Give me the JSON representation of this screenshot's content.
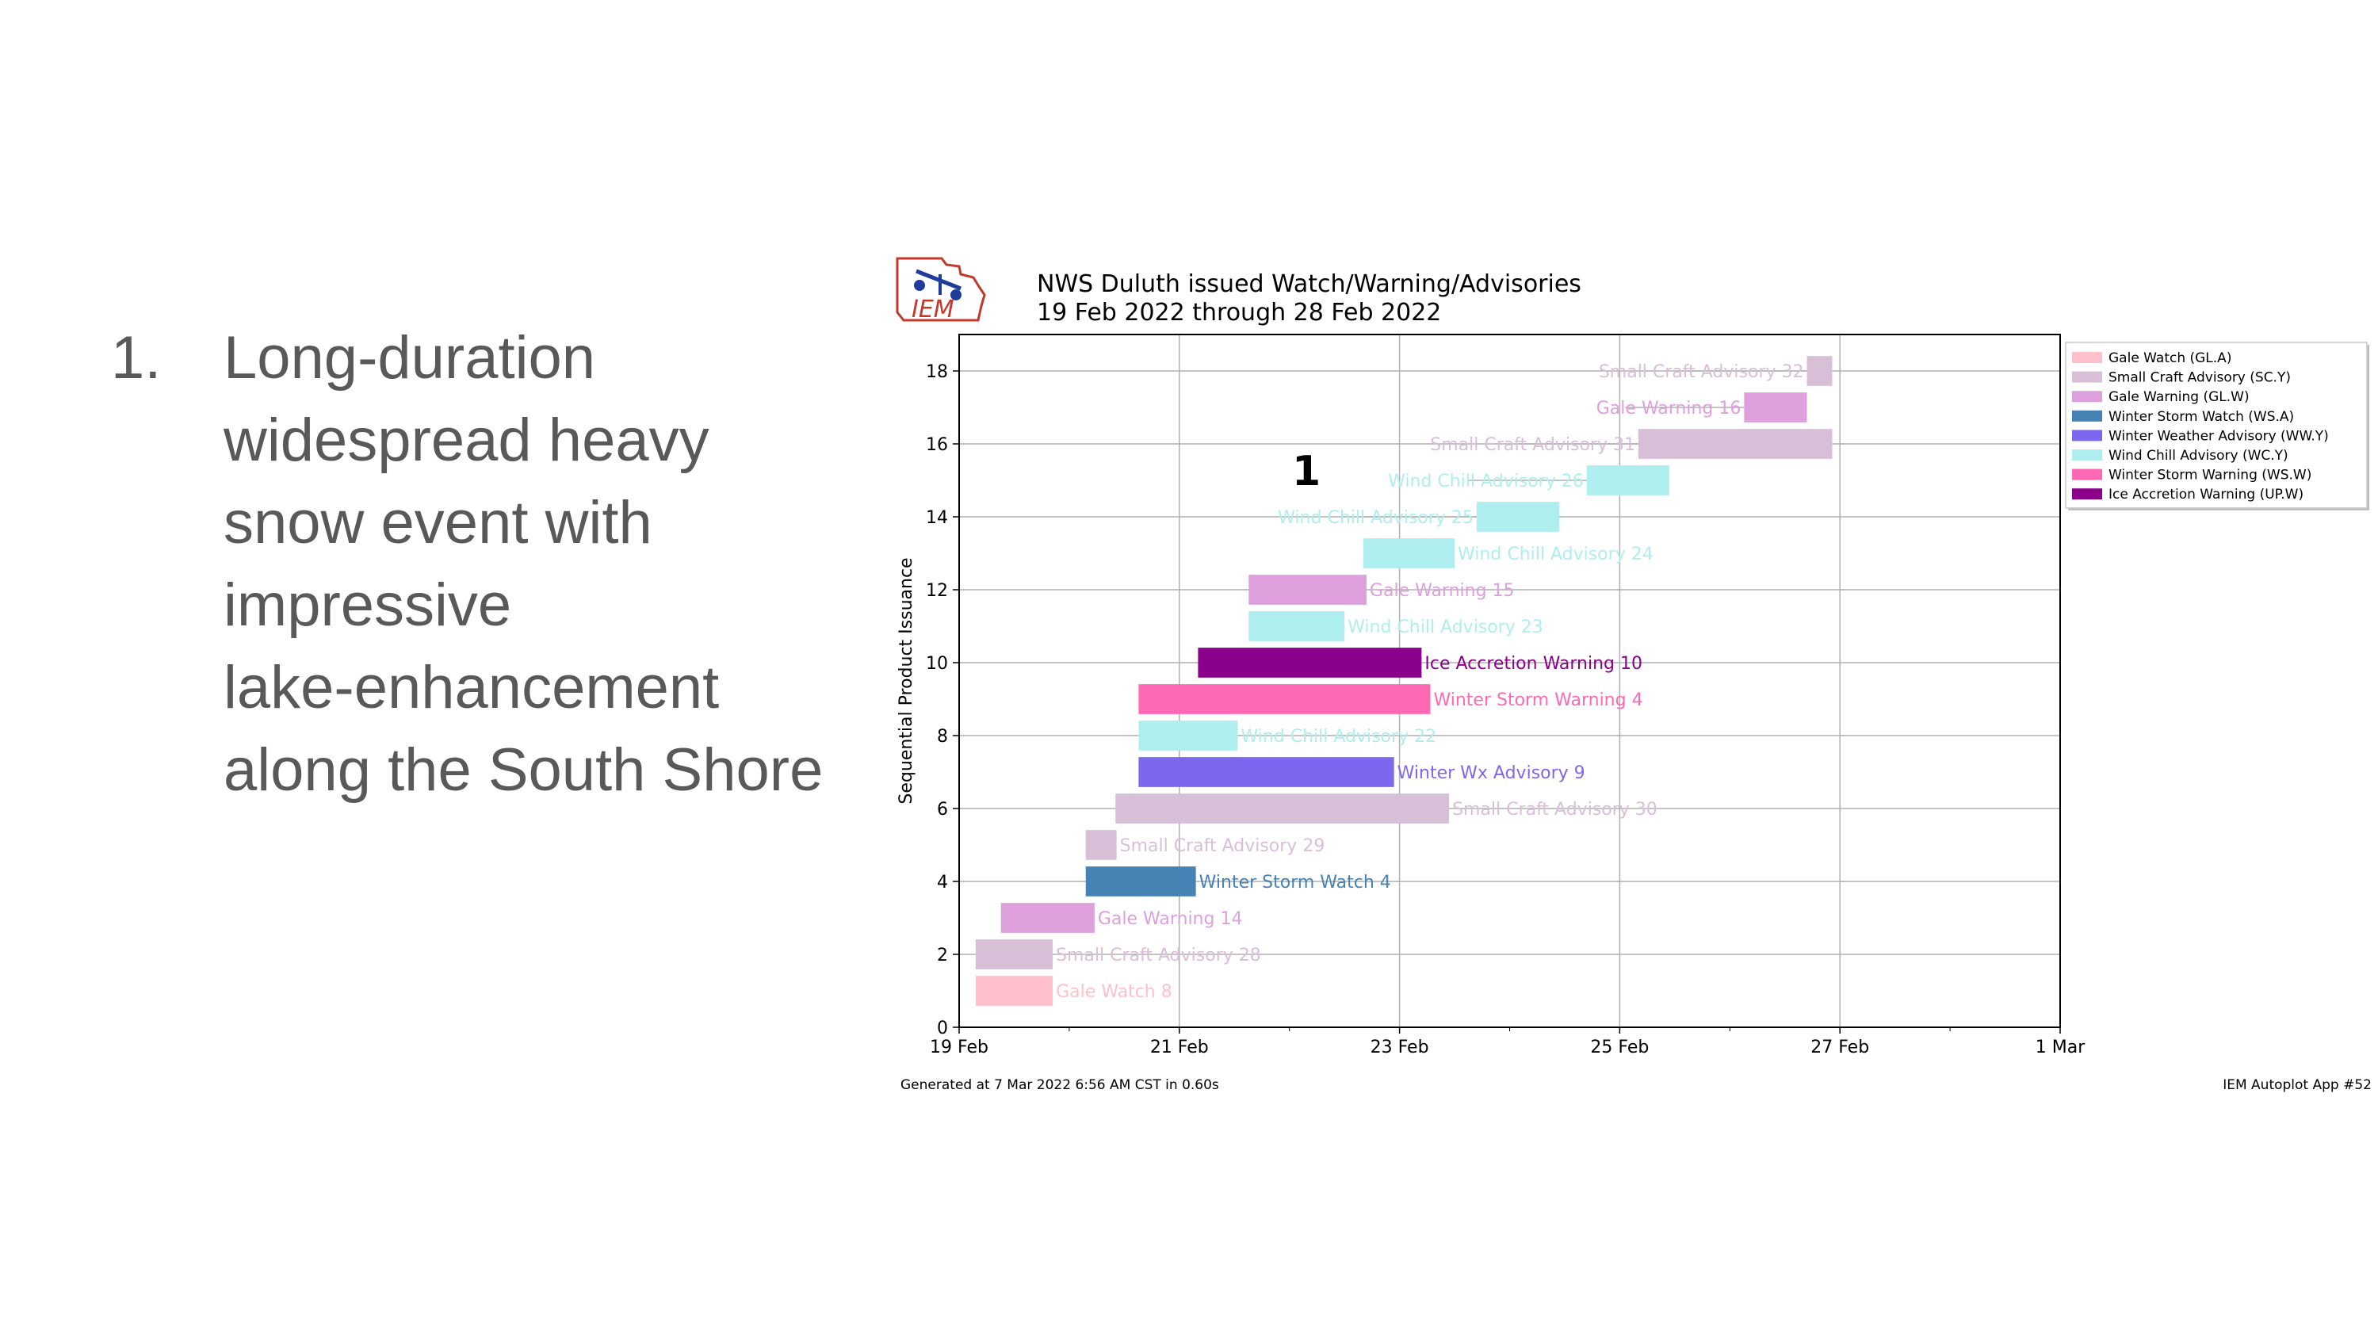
{
  "slide": {
    "number": "1.",
    "text": "Long-duration\nwidespread heavy\nsnow event with\nimpressive\nlake-enhancement\nalong the South Shore"
  },
  "logo_text": "IEM",
  "annotation": "1",
  "footer_left": "Generated at 7 Mar 2022 6:56 AM CST in 0.60s",
  "footer_right": "IEM Autoplot App #52",
  "chart_data": {
    "type": "bar",
    "orientation": "horizontal-gantt",
    "title": "NWS Duluth issued Watch/Warning/Advisories",
    "subtitle": "19 Feb 2022 through 28 Feb 2022",
    "ylabel": "Sequential Product Issuance",
    "xlabel": "",
    "x_ticks": [
      "19 Feb",
      "21 Feb",
      "23 Feb",
      "25 Feb",
      "27 Feb",
      "1 Mar"
    ],
    "x_tick_days": [
      0,
      2,
      4,
      6,
      8,
      10
    ],
    "xlim_days": [
      0,
      10
    ],
    "y_ticks": [
      0,
      2,
      4,
      6,
      8,
      10,
      12,
      14,
      16,
      18
    ],
    "ylim": [
      0,
      19
    ],
    "grid": true,
    "legend_position": "outside-right",
    "legend": [
      {
        "label": "Gale Watch (GL.A)",
        "color": "#ffc0cb"
      },
      {
        "label": "Small Craft Advisory (SC.Y)",
        "color": "#d8bfd8"
      },
      {
        "label": "Gale Warning (GL.W)",
        "color": "#dda0dd"
      },
      {
        "label": "Winter Storm Watch (WS.A)",
        "color": "#4682b4"
      },
      {
        "label": "Winter Weather Advisory (WW.Y)",
        "color": "#7b68ee"
      },
      {
        "label": "Wind Chill Advisory (WC.Y)",
        "color": "#afeeee"
      },
      {
        "label": "Winter Storm Warning (WS.W)",
        "color": "#ff69b4"
      },
      {
        "label": "Ice Accretion Warning (UP.W)",
        "color": "#8b008b"
      }
    ],
    "bars": [
      {
        "y": 1,
        "start": 0.15,
        "end": 0.85,
        "label": "Gale Watch 8",
        "color": "#ffc0cb",
        "label_side": "right"
      },
      {
        "y": 2,
        "start": 0.15,
        "end": 0.85,
        "label": "Small Craft Advisory 28",
        "color": "#d8bfd8",
        "label_side": "right"
      },
      {
        "y": 3,
        "start": 0.38,
        "end": 1.23,
        "label": "Gale Warning 14",
        "color": "#dda0dd",
        "label_side": "right"
      },
      {
        "y": 4,
        "start": 1.15,
        "end": 2.15,
        "label": "Winter Storm Watch 4",
        "color": "#4682b4",
        "label_side": "right"
      },
      {
        "y": 5,
        "start": 1.15,
        "end": 1.43,
        "label": "Small Craft Advisory 29",
        "color": "#d8bfd8",
        "label_side": "right"
      },
      {
        "y": 6,
        "start": 1.42,
        "end": 4.45,
        "label": "Small Craft Advisory 30",
        "color": "#d8bfd8",
        "label_side": "right"
      },
      {
        "y": 7,
        "start": 1.63,
        "end": 3.95,
        "label": "Winter Wx Advisory 9",
        "color": "#7b68ee",
        "label_side": "right"
      },
      {
        "y": 8,
        "start": 1.63,
        "end": 2.53,
        "label": "Wind Chill Advisory 22",
        "color": "#afeeee",
        "label_side": "right"
      },
      {
        "y": 9,
        "start": 1.63,
        "end": 4.28,
        "label": "Winter Storm Warning 4",
        "color": "#ff69b4",
        "label_side": "right"
      },
      {
        "y": 10,
        "start": 2.17,
        "end": 4.2,
        "label": "Ice Accretion Warning 10",
        "color": "#8b008b",
        "label_side": "right"
      },
      {
        "y": 11,
        "start": 2.63,
        "end": 3.5,
        "label": "Wind Chill Advisory 23",
        "color": "#afeeee",
        "label_side": "right"
      },
      {
        "y": 12,
        "start": 2.63,
        "end": 3.7,
        "label": "Gale Warning 15",
        "color": "#dda0dd",
        "label_side": "right"
      },
      {
        "y": 13,
        "start": 3.67,
        "end": 4.5,
        "label": "Wind Chill Advisory 24",
        "color": "#afeeee",
        "label_side": "right"
      },
      {
        "y": 14,
        "start": 4.7,
        "end": 5.45,
        "label": "Wind Chill Advisory 25",
        "color": "#afeeee",
        "label_side": "left"
      },
      {
        "y": 15,
        "start": 5.7,
        "end": 6.45,
        "label": "Wind Chill Advisory 26",
        "color": "#afeeee",
        "label_side": "left"
      },
      {
        "y": 16,
        "start": 6.17,
        "end": 7.93,
        "label": "Small Craft Advisory 31",
        "color": "#d8bfd8",
        "label_side": "left"
      },
      {
        "y": 17,
        "start": 7.13,
        "end": 7.7,
        "label": "Gale Warning 16",
        "color": "#dda0dd",
        "label_side": "left"
      },
      {
        "y": 18,
        "start": 7.7,
        "end": 7.93,
        "label": "Small Craft Advisory 32",
        "color": "#d8bfd8",
        "label_side": "left"
      }
    ]
  }
}
